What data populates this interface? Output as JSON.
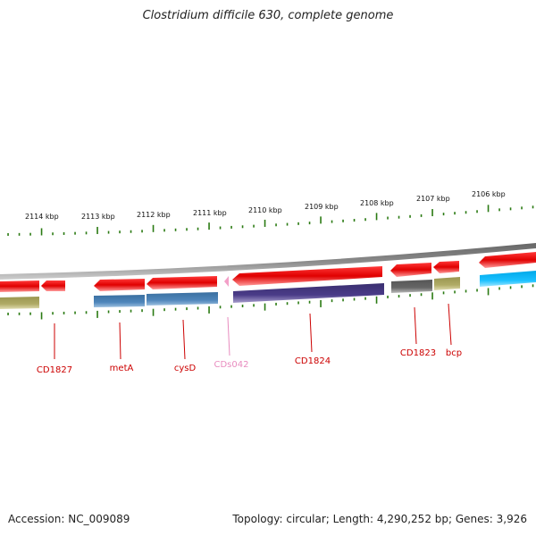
{
  "title": "Clostridium difficile 630, complete genome",
  "footer": {
    "accession": "Accession: NC_009089",
    "summary": "Topology: circular; Length: 4,290,252 bp; Genes: 3,926"
  },
  "ruler": {
    "labels": [
      "2114 kbp",
      "2113 kbp",
      "2112 kbp",
      "2111 kbp",
      "2110 kbp",
      "2109 kbp",
      "2108 kbp",
      "2107 kbp",
      "2106 kbp"
    ]
  },
  "genes": [
    {
      "label": "CD1827",
      "color": "#cc0000"
    },
    {
      "label": "metA",
      "color": "#cc0000"
    },
    {
      "label": "cysD",
      "color": "#cc0000"
    },
    {
      "label": "CDs042",
      "color": "#e88cbf"
    },
    {
      "label": "CD1824",
      "color": "#cc0000"
    },
    {
      "label": "CD1823",
      "color": "#cc0000"
    },
    {
      "label": "bcp",
      "color": "#cc0000"
    }
  ],
  "colors": {
    "cds_red": "#ee1111",
    "tick_green": "#2a7a12",
    "backbone": "#888888"
  }
}
